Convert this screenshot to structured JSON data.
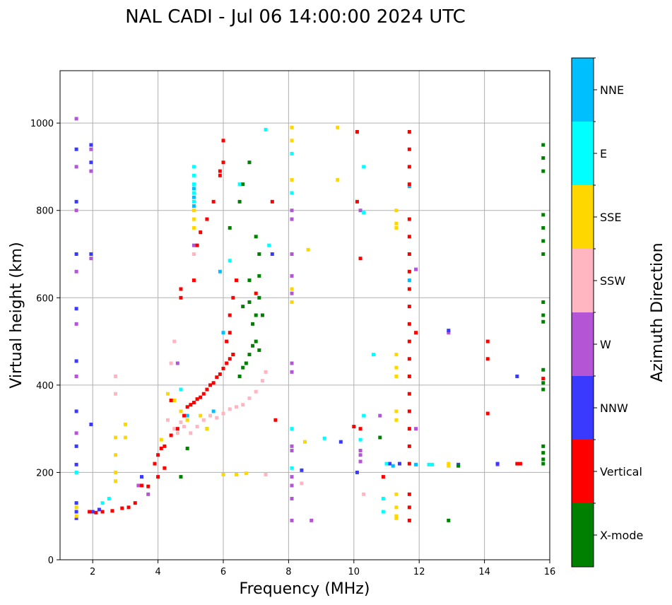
{
  "chart_data": {
    "type": "scatter",
    "title": "NAL CADI - Jul 06 14:00:00 2024 UTC",
    "xlabel": "Frequency (MHz)",
    "ylabel": "Virtual height (km)",
    "xlim": [
      1.0,
      16.0
    ],
    "ylim": [
      0,
      1120
    ],
    "xticks": [
      2,
      4,
      6,
      8,
      10,
      12,
      14,
      16
    ],
    "yticks": [
      0,
      200,
      400,
      600,
      800,
      1000
    ],
    "grid": true,
    "colorbar": {
      "label": "Azimuth Direction",
      "categories": [
        {
          "name": "X-mode",
          "color": "#008000"
        },
        {
          "name": "Vertical",
          "color": "#ff0000"
        },
        {
          "name": "NNW",
          "color": "#3a3aff"
        },
        {
          "name": "W",
          "color": "#b455d6"
        },
        {
          "name": "SSW",
          "color": "#ffb6c1"
        },
        {
          "name": "SSE",
          "color": "#ffd700"
        },
        {
          "name": "E",
          "color": "#00ffff"
        },
        {
          "name": "NNE",
          "color": "#00bfff"
        }
      ]
    },
    "series": [
      {
        "name": "Vertical",
        "color": "#ff0000",
        "points": [
          [
            1.9,
            110
          ],
          [
            2.1,
            108
          ],
          [
            2.3,
            110
          ],
          [
            2.6,
            112
          ],
          [
            2.9,
            118
          ],
          [
            3.1,
            120
          ],
          [
            3.3,
            130
          ],
          [
            3.5,
            170
          ],
          [
            3.7,
            168
          ],
          [
            3.9,
            220
          ],
          [
            4.0,
            240
          ],
          [
            4.1,
            255
          ],
          [
            4.2,
            260
          ],
          [
            4.4,
            285
          ],
          [
            4.6,
            300
          ],
          [
            4.8,
            330
          ],
          [
            4.9,
            350
          ],
          [
            5.0,
            355
          ],
          [
            5.1,
            360
          ],
          [
            5.2,
            368
          ],
          [
            5.3,
            372
          ],
          [
            5.4,
            380
          ],
          [
            5.5,
            390
          ],
          [
            5.6,
            400
          ],
          [
            5.7,
            405
          ],
          [
            5.8,
            418
          ],
          [
            5.9,
            425
          ],
          [
            6.0,
            438
          ],
          [
            6.1,
            450
          ],
          [
            6.2,
            460
          ],
          [
            6.3,
            470
          ],
          [
            6.1,
            500
          ],
          [
            6.2,
            520
          ],
          [
            6.2,
            560
          ],
          [
            4.0,
            190
          ],
          [
            4.2,
            210
          ],
          [
            4.4,
            365
          ],
          [
            4.7,
            600
          ],
          [
            4.7,
            620
          ],
          [
            5.1,
            640
          ],
          [
            5.2,
            720
          ],
          [
            5.3,
            750
          ],
          [
            5.5,
            780
          ],
          [
            5.7,
            820
          ],
          [
            5.9,
            880
          ],
          [
            6.0,
            910
          ],
          [
            6.0,
            960
          ],
          [
            5.9,
            890
          ],
          [
            6.3,
            600
          ],
          [
            6.4,
            640
          ],
          [
            7.0,
            610
          ],
          [
            7.5,
            820
          ],
          [
            7.6,
            320
          ],
          [
            10.1,
            980
          ],
          [
            10.1,
            820
          ],
          [
            10.2,
            690
          ],
          [
            10.0,
            305
          ],
          [
            10.2,
            300
          ],
          [
            10.9,
            190
          ],
          [
            11.7,
            980
          ],
          [
            11.7,
            940
          ],
          [
            11.7,
            900
          ],
          [
            11.7,
            860
          ],
          [
            11.7,
            780
          ],
          [
            11.7,
            740
          ],
          [
            11.7,
            700
          ],
          [
            11.7,
            660
          ],
          [
            11.7,
            620
          ],
          [
            11.7,
            580
          ],
          [
            11.7,
            540
          ],
          [
            11.7,
            500
          ],
          [
            11.7,
            460
          ],
          [
            11.7,
            420
          ],
          [
            11.7,
            380
          ],
          [
            11.7,
            340
          ],
          [
            11.7,
            300
          ],
          [
            11.7,
            260
          ],
          [
            11.7,
            220
          ],
          [
            11.7,
            150
          ],
          [
            11.7,
            120
          ],
          [
            11.7,
            90
          ],
          [
            11.9,
            520
          ],
          [
            14.1,
            500
          ],
          [
            14.1,
            460
          ],
          [
            14.1,
            335
          ],
          [
            15.1,
            220
          ],
          [
            15.0,
            220
          ],
          [
            15.8,
            415
          ]
        ]
      },
      {
        "name": "X-mode",
        "color": "#008000",
        "points": [
          [
            6.3,
            470
          ],
          [
            6.5,
            420
          ],
          [
            6.6,
            440
          ],
          [
            6.7,
            450
          ],
          [
            6.8,
            470
          ],
          [
            6.9,
            490
          ],
          [
            7.0,
            500
          ],
          [
            7.1,
            480
          ],
          [
            7.0,
            560
          ],
          [
            6.9,
            540
          ],
          [
            7.1,
            600
          ],
          [
            7.1,
            650
          ],
          [
            7.1,
            700
          ],
          [
            7.0,
            740
          ],
          [
            6.8,
            640
          ],
          [
            6.6,
            580
          ],
          [
            6.8,
            590
          ],
          [
            6.6,
            860
          ],
          [
            6.5,
            820
          ],
          [
            6.2,
            760
          ],
          [
            6.8,
            910
          ],
          [
            7.2,
            560
          ],
          [
            4.7,
            190
          ],
          [
            4.9,
            255
          ],
          [
            10.8,
            280
          ],
          [
            12.9,
            90
          ],
          [
            13.2,
            215
          ],
          [
            15.8,
            950
          ],
          [
            15.8,
            920
          ],
          [
            15.8,
            890
          ],
          [
            15.8,
            790
          ],
          [
            15.8,
            760
          ],
          [
            15.8,
            730
          ],
          [
            15.8,
            700
          ],
          [
            15.8,
            590
          ],
          [
            15.8,
            560
          ],
          [
            15.8,
            545
          ],
          [
            15.8,
            435
          ],
          [
            15.8,
            405
          ],
          [
            15.8,
            390
          ],
          [
            15.8,
            260
          ],
          [
            15.8,
            245
          ],
          [
            15.8,
            230
          ],
          [
            15.8,
            220
          ]
        ]
      },
      {
        "name": "SSW",
        "color": "#ffb6c1",
        "points": [
          [
            4.5,
            300
          ],
          [
            4.6,
            290
          ],
          [
            4.7,
            315
          ],
          [
            4.8,
            305
          ],
          [
            5.0,
            290
          ],
          [
            5.2,
            305
          ],
          [
            5.4,
            320
          ],
          [
            5.6,
            330
          ],
          [
            5.8,
            325
          ],
          [
            6.0,
            335
          ],
          [
            6.2,
            345
          ],
          [
            6.4,
            350
          ],
          [
            6.6,
            355
          ],
          [
            6.8,
            370
          ],
          [
            7.0,
            385
          ],
          [
            7.2,
            410
          ],
          [
            7.3,
            430
          ],
          [
            4.3,
            320
          ],
          [
            2.7,
            420
          ],
          [
            2.7,
            380
          ],
          [
            4.5,
            500
          ],
          [
            7.3,
            195
          ],
          [
            8.4,
            175
          ],
          [
            10.3,
            150
          ],
          [
            5.1,
            700
          ],
          [
            4.4,
            450
          ]
        ]
      },
      {
        "name": "SSE",
        "color": "#ffd700",
        "points": [
          [
            4.3,
            380
          ],
          [
            4.5,
            365
          ],
          [
            4.7,
            340
          ],
          [
            4.9,
            320
          ],
          [
            5.3,
            330
          ],
          [
            5.5,
            300
          ],
          [
            4.1,
            275
          ],
          [
            3.0,
            310
          ],
          [
            3.0,
            280
          ],
          [
            2.7,
            280
          ],
          [
            2.7,
            240
          ],
          [
            2.7,
            200
          ],
          [
            2.7,
            180
          ],
          [
            5.1,
            800
          ],
          [
            5.1,
            780
          ],
          [
            5.1,
            760
          ],
          [
            6.0,
            195
          ],
          [
            6.4,
            195
          ],
          [
            6.7,
            198
          ],
          [
            11.3,
            800
          ],
          [
            11.3,
            770
          ],
          [
            11.3,
            760
          ],
          [
            11.3,
            470
          ],
          [
            11.3,
            440
          ],
          [
            11.3,
            420
          ],
          [
            11.3,
            340
          ],
          [
            11.3,
            320
          ],
          [
            11.3,
            150
          ],
          [
            11.3,
            120
          ],
          [
            11.3,
            100
          ],
          [
            11.3,
            95
          ],
          [
            8.1,
            990
          ],
          [
            8.1,
            960
          ],
          [
            8.1,
            870
          ],
          [
            8.1,
            620
          ],
          [
            8.1,
            590
          ],
          [
            8.6,
            710
          ],
          [
            9.5,
            990
          ],
          [
            9.5,
            870
          ],
          [
            8.5,
            270
          ],
          [
            12.9,
            220
          ],
          [
            12.9,
            215
          ],
          [
            1.5,
            100
          ],
          [
            1.5,
            120
          ]
        ]
      },
      {
        "name": "NNW",
        "color": "#3a3aff",
        "points": [
          [
            1.5,
            940
          ],
          [
            1.5,
            820
          ],
          [
            1.5,
            700
          ],
          [
            1.5,
            575
          ],
          [
            1.5,
            455
          ],
          [
            1.5,
            340
          ],
          [
            1.5,
            260
          ],
          [
            1.5,
            218
          ],
          [
            1.5,
            130
          ],
          [
            1.5,
            110
          ],
          [
            1.5,
            95
          ],
          [
            1.95,
            950
          ],
          [
            1.95,
            910
          ],
          [
            1.95,
            700
          ],
          [
            1.95,
            310
          ],
          [
            3.5,
            190
          ],
          [
            2.0,
            110
          ],
          [
            2.2,
            115
          ],
          [
            7.5,
            700
          ],
          [
            8.4,
            205
          ],
          [
            9.6,
            270
          ],
          [
            10.1,
            200
          ],
          [
            11.1,
            220
          ],
          [
            11.4,
            220
          ],
          [
            12.9,
            525
          ],
          [
            13.2,
            218
          ],
          [
            14.4,
            220
          ],
          [
            15.0,
            420
          ]
        ]
      },
      {
        "name": "W",
        "color": "#b455d6",
        "points": [
          [
            1.5,
            1010
          ],
          [
            1.5,
            900
          ],
          [
            1.5,
            800
          ],
          [
            1.5,
            660
          ],
          [
            1.5,
            540
          ],
          [
            1.5,
            420
          ],
          [
            1.5,
            290
          ],
          [
            1.95,
            940
          ],
          [
            1.95,
            890
          ],
          [
            1.95,
            690
          ],
          [
            8.1,
            800
          ],
          [
            8.1,
            780
          ],
          [
            8.1,
            700
          ],
          [
            8.1,
            650
          ],
          [
            8.1,
            610
          ],
          [
            8.1,
            450
          ],
          [
            8.1,
            430
          ],
          [
            8.1,
            260
          ],
          [
            8.1,
            250
          ],
          [
            8.1,
            190
          ],
          [
            8.1,
            170
          ],
          [
            8.1,
            140
          ],
          [
            8.1,
            90
          ],
          [
            8.7,
            90
          ],
          [
            10.2,
            800
          ],
          [
            10.2,
            250
          ],
          [
            10.2,
            240
          ],
          [
            10.2,
            225
          ],
          [
            10.8,
            330
          ],
          [
            11.9,
            665
          ],
          [
            11.9,
            300
          ],
          [
            12.9,
            520
          ],
          [
            14.4,
            218
          ],
          [
            5.1,
            720
          ],
          [
            3.4,
            170
          ],
          [
            4.6,
            450
          ],
          [
            3.7,
            150
          ]
        ]
      },
      {
        "name": "E",
        "color": "#00ffff",
        "points": [
          [
            5.1,
            900
          ],
          [
            5.1,
            880
          ],
          [
            5.1,
            860
          ],
          [
            5.1,
            840
          ],
          [
            5.1,
            820
          ],
          [
            6.5,
            860
          ],
          [
            6.2,
            685
          ],
          [
            7.4,
            720
          ],
          [
            8.1,
            930
          ],
          [
            8.1,
            840
          ],
          [
            8.1,
            300
          ],
          [
            8.1,
            210
          ],
          [
            10.3,
            900
          ],
          [
            10.3,
            795
          ],
          [
            10.3,
            330
          ],
          [
            10.6,
            470
          ],
          [
            10.9,
            140
          ],
          [
            10.9,
            110
          ],
          [
            12.3,
            218
          ],
          [
            12.4,
            218
          ],
          [
            9.1,
            278
          ],
          [
            10.2,
            275
          ],
          [
            7.3,
            985
          ],
          [
            2.3,
            130
          ],
          [
            2.5,
            140
          ],
          [
            4.7,
            390
          ],
          [
            1.5,
            200
          ],
          [
            11.0,
            220
          ]
        ]
      },
      {
        "name": "NNE",
        "color": "#00bfff",
        "points": [
          [
            5.1,
            850
          ],
          [
            5.1,
            830
          ],
          [
            5.1,
            810
          ],
          [
            6.0,
            520
          ],
          [
            5.5,
            300
          ],
          [
            5.7,
            340
          ],
          [
            11.7,
            855
          ],
          [
            11.7,
            640
          ],
          [
            11.2,
            215
          ],
          [
            11.9,
            218
          ],
          [
            5.9,
            660
          ],
          [
            4.9,
            330
          ]
        ]
      }
    ]
  }
}
